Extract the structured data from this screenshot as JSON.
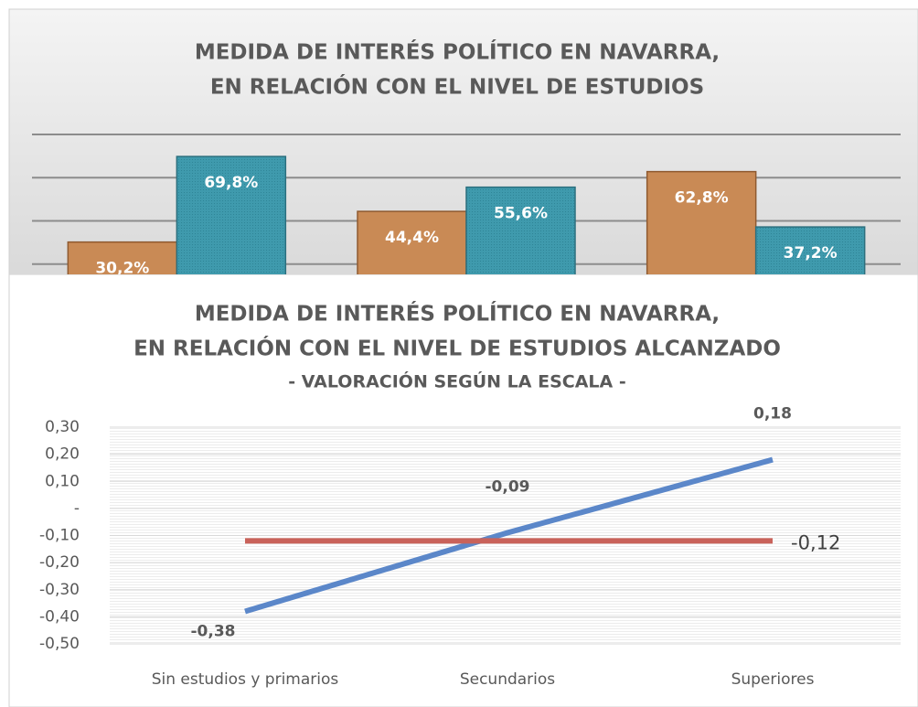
{
  "chart_data": [
    {
      "type": "bar",
      "title": [
        "MEDIDA DE INTERÉS POLÍTICO EN NAVARRA,",
        "EN RELACIÓN CON EL NIVEL DE ESTUDIOS"
      ],
      "categories": [
        null,
        null,
        null
      ],
      "series": [
        {
          "color": "#c98a55",
          "values": [
            30.2,
            44.4,
            62.8
          ],
          "value_labels": [
            "30,2%",
            "44,4%",
            "62,8%"
          ]
        },
        {
          "color": "#3f9aad",
          "values": [
            69.8,
            55.6,
            37.2
          ],
          "value_labels": [
            "69,8%",
            "55,6%",
            "37,2%"
          ]
        }
      ],
      "ylim": [
        0,
        80
      ],
      "yticks": [
        20,
        40,
        60,
        80
      ],
      "grid": true
    },
    {
      "type": "line",
      "title": [
        "MEDIDA DE INTERÉS POLÍTICO EN NAVARRA,",
        "EN RELACIÓN CON EL NIVEL DE ESTUDIOS ALCANZADO"
      ],
      "subtitle": "- VALORACIÓN SEGÚN LA ESCALA -",
      "categories": [
        "Sin estudios y primarios",
        "Secundarios",
        "Superiores"
      ],
      "series": [
        {
          "color": "#5b87c9",
          "values": [
            -0.38,
            -0.09,
            0.18
          ],
          "value_labels": [
            "-0,38",
            "-0,09",
            "0,18"
          ]
        },
        {
          "color": "#c9625a",
          "values": [
            -0.12,
            -0.12,
            -0.12
          ],
          "value_labels": [
            null,
            null,
            "-0,12"
          ]
        }
      ],
      "ylim": [
        -0.5,
        0.3
      ],
      "yticks": [
        {
          "value": 0.3,
          "label": "0,30"
        },
        {
          "value": 0.2,
          "label": "0,20"
        },
        {
          "value": 0.1,
          "label": "0,10"
        },
        {
          "value": 0,
          "label": "-"
        },
        {
          "value": -0.1,
          "label": "-0,10"
        },
        {
          "value": -0.2,
          "label": "-0,20"
        },
        {
          "value": -0.3,
          "label": "-0,30"
        },
        {
          "value": -0.4,
          "label": "-0,40"
        },
        {
          "value": -0.5,
          "label": "-0,50"
        }
      ],
      "grid": true
    }
  ]
}
